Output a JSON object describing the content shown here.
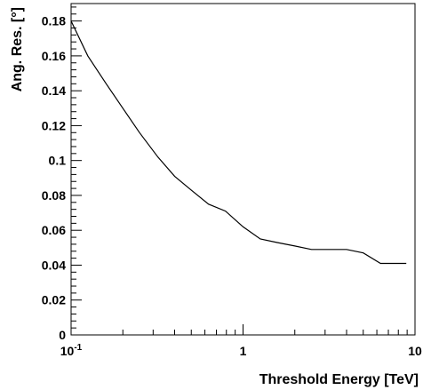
{
  "chart_data": {
    "type": "line",
    "title": "",
    "xlabel": "Threshold Energy [TeV]",
    "ylabel": "Ang. Res. [°]",
    "x_scale": "log",
    "xlim": [
      0.1,
      10
    ],
    "ylim": [
      0,
      0.19
    ],
    "grid": false,
    "legend": "none",
    "line_color": "#000000",
    "x_ticks": [
      {
        "value": 0.1,
        "base": "10",
        "exp": "-1"
      },
      {
        "value": 1,
        "base": "1",
        "exp": ""
      },
      {
        "value": 10,
        "base": "10",
        "exp": ""
      }
    ],
    "y_ticks": [
      {
        "value": 0,
        "label": "0"
      },
      {
        "value": 0.02,
        "label": "0.02"
      },
      {
        "value": 0.04,
        "label": "0.04"
      },
      {
        "value": 0.06,
        "label": "0.06"
      },
      {
        "value": 0.08,
        "label": "0.08"
      },
      {
        "value": 0.1,
        "label": "0.1"
      },
      {
        "value": 0.12,
        "label": "0.12"
      },
      {
        "value": 0.14,
        "label": "0.14"
      },
      {
        "value": 0.16,
        "label": "0.16"
      },
      {
        "value": 0.18,
        "label": "0.18"
      }
    ],
    "series": [
      {
        "x": [
          0.1,
          0.125,
          0.16,
          0.2,
          0.25,
          0.32,
          0.4,
          0.5,
          0.63,
          0.79,
          1.0,
          1.26,
          1.58,
          2.0,
          2.5,
          3.2,
          4.0,
          5.0,
          6.3,
          8.9
        ],
        "y": [
          0.18,
          0.16,
          0.144,
          0.13,
          0.116,
          0.102,
          0.091,
          0.083,
          0.075,
          0.071,
          0.062,
          0.055,
          0.053,
          0.051,
          0.049,
          0.049,
          0.049,
          0.047,
          0.041,
          0.041
        ]
      }
    ]
  }
}
